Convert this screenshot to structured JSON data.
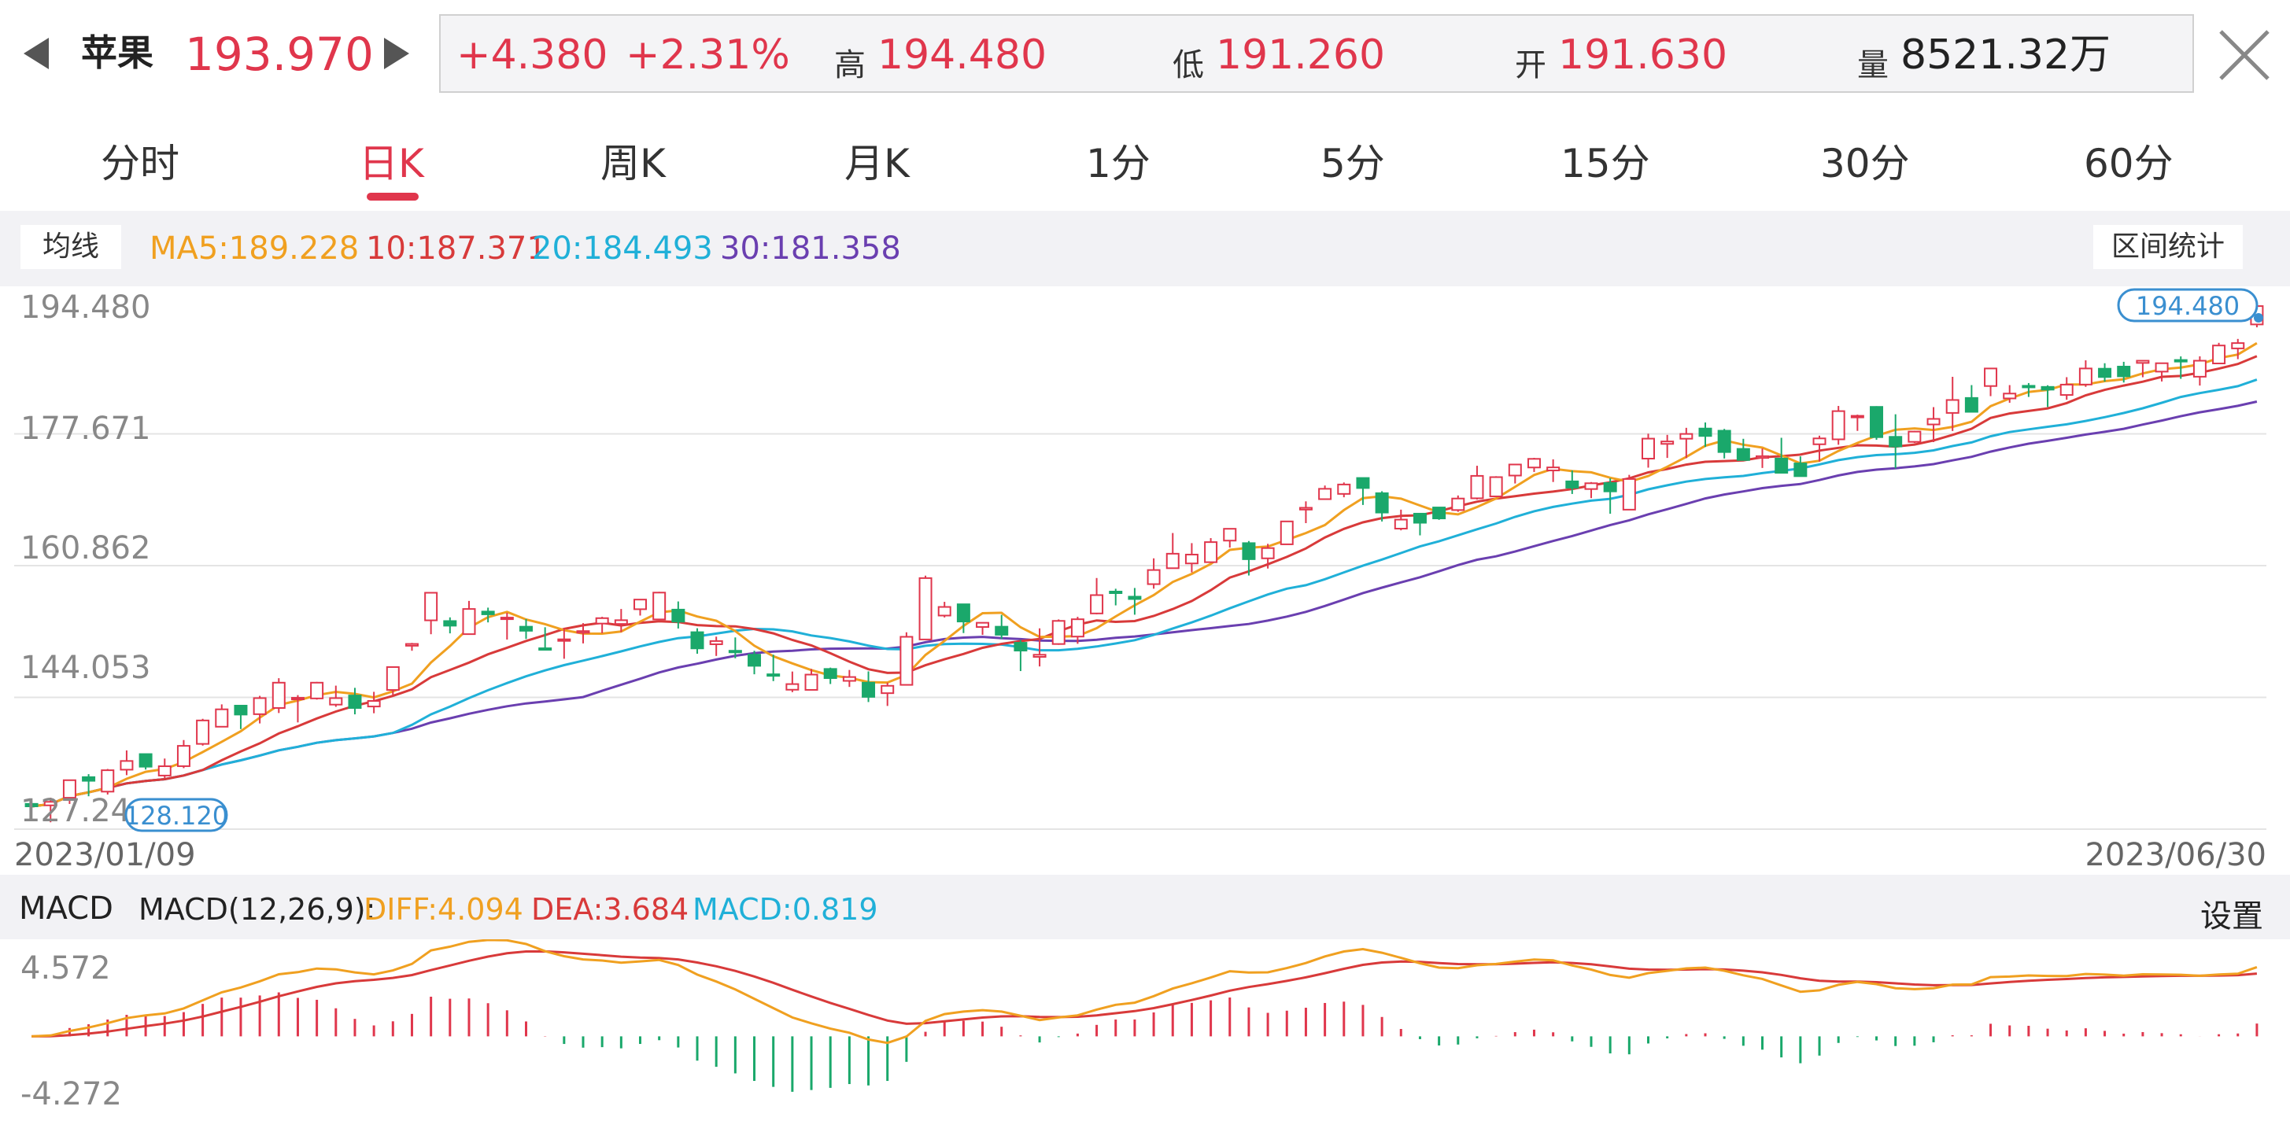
{
  "header": {
    "name": "苹果",
    "price": "193.970",
    "change": "+4.380",
    "change_pct": "+2.31%",
    "high_label": "高",
    "high": "194.480",
    "low_label": "低",
    "low": "191.260",
    "open_label": "开",
    "open": "191.630",
    "volume_label": "量",
    "volume": "8521.32万",
    "accent_red": "#e0364c"
  },
  "tabs": [
    {
      "label": "分时"
    },
    {
      "label": "日K"
    },
    {
      "label": "周K"
    },
    {
      "label": "月K"
    },
    {
      "label": "1分"
    },
    {
      "label": "5分"
    },
    {
      "label": "15分"
    },
    {
      "label": "30分"
    },
    {
      "label": "60分"
    }
  ],
  "active_tab": "日K",
  "ma_bar": {
    "button": "均线",
    "ma5": "MA5:189.228",
    "ma10": "10:187.371",
    "ma20": "20:184.493",
    "ma30": "30:181.358",
    "stats_button": "区间统计",
    "colors": {
      "ma5": "#f0a020",
      "ma10": "#d83a3a",
      "ma20": "#20b0d8",
      "ma30": "#6a3fb0"
    }
  },
  "main_chart": {
    "y_ticks": [
      "194.480",
      "177.671",
      "160.862",
      "144.053",
      "127.244"
    ],
    "ylim": [
      127.244,
      194.48
    ],
    "max_tag": "194.480",
    "min_tag": "128.120",
    "date_start": "2023/01/09",
    "date_end": "2023/06/30"
  },
  "macd_bar": {
    "title": "MACD",
    "params": "MACD(12,26,9):",
    "diff": "DIFF:4.094",
    "dea": "DEA:3.684",
    "macd": "MACD:0.819",
    "settings": "设置"
  },
  "macd_chart": {
    "y_top": "4.572",
    "y_bottom": "-4.272",
    "ylim": [
      -4.272,
      4.572
    ]
  },
  "chart_data": {
    "type": "candlestick",
    "x_range": [
      "2023/01/09",
      "2023/06/30"
    ],
    "candles": [
      [
        130.47,
        130.15,
        130.9,
        129.89
      ],
      [
        130.28,
        130.73,
        131.26,
        128.12
      ],
      [
        131.25,
        133.49,
        133.51,
        130.46
      ],
      [
        133.88,
        133.41,
        134.26,
        131.44
      ],
      [
        132.03,
        134.76,
        134.92,
        131.66
      ],
      [
        134.83,
        135.94,
        137.29,
        134.13
      ],
      [
        136.82,
        135.21,
        136.82,
        134.85
      ],
      [
        134.08,
        135.27,
        136.25,
        133.77
      ],
      [
        135.28,
        137.87,
        138.61,
        135.03
      ],
      [
        138.12,
        141.11,
        141.32,
        137.9
      ],
      [
        140.31,
        142.53,
        143.16,
        140.3
      ],
      [
        143.0,
        141.86,
        142.66,
        140.01
      ],
      [
        141.91,
        143.96,
        144.25,
        140.73
      ],
      [
        142.7,
        145.93,
        146.5,
        142.06
      ],
      [
        143.97,
        144.0,
        144.34,
        140.86
      ],
      [
        143.92,
        145.93,
        146.03,
        143.77
      ],
      [
        143.13,
        143.96,
        145.55,
        142.85
      ],
      [
        144.29,
        142.7,
        145.27,
        141.89
      ],
      [
        142.89,
        143.6,
        144.76,
        142.03
      ],
      [
        145.0,
        147.92,
        147.92,
        144.37
      ],
      [
        150.64,
        150.87,
        151.0,
        150.0
      ],
      [
        153.88,
        157.4,
        157.42,
        152.11
      ],
      [
        153.79,
        153.2,
        154.26,
        152.22
      ],
      [
        152.12,
        155.33,
        156.36,
        152.05
      ],
      [
        155.0,
        154.65,
        155.5,
        153.62
      ],
      [
        154.21,
        154.23,
        154.85,
        151.43
      ],
      [
        153.07,
        152.55,
        154.05,
        151.51
      ],
      [
        150.32,
        150.23,
        153.0,
        150.2
      ],
      [
        151.38,
        151.46,
        152.9,
        148.98
      ],
      [
        152.3,
        152.51,
        153.52,
        150.94
      ],
      [
        153.47,
        154.16,
        154.33,
        152.24
      ],
      [
        153.42,
        153.9,
        155.33,
        152.38
      ],
      [
        155.3,
        156.53,
        156.43,
        154.49
      ],
      [
        154.0,
        157.42,
        157.52,
        155.76
      ],
      [
        155.25,
        153.71,
        156.29,
        152.84
      ],
      [
        152.37,
        150.3,
        152.87,
        149.62
      ],
      [
        150.83,
        151.24,
        151.8,
        149.34
      ],
      [
        150.0,
        149.91,
        151.7,
        149.04
      ],
      [
        149.5,
        148.08,
        150.0,
        147.0
      ],
      [
        147.0,
        146.96,
        149.5,
        146.13
      ],
      [
        145.03,
        145.75,
        147.35,
        144.72
      ],
      [
        145.01,
        146.96,
        147.68,
        145.0
      ],
      [
        147.68,
        146.51,
        147.85,
        145.76
      ],
      [
        146.16,
        146.65,
        147.55,
        145.39
      ],
      [
        145.93,
        144.12,
        147.37,
        143.46
      ],
      [
        144.59,
        145.53,
        145.94,
        142.96
      ],
      [
        145.65,
        151.78,
        152.36,
        146.01
      ],
      [
        151.44,
        159.27,
        159.58,
        153.0
      ],
      [
        154.49,
        155.59,
        156.24,
        154.25
      ],
      [
        155.93,
        153.73,
        155.91,
        152.26
      ],
      [
        153.03,
        153.57,
        153.19,
        152.03
      ],
      [
        153.07,
        152.04,
        154.58,
        151.51
      ],
      [
        151.02,
        150.02,
        151.36,
        147.41
      ],
      [
        149.22,
        149.49,
        152.86,
        148.0
      ],
      [
        150.86,
        153.81,
        154.0,
        150.76
      ],
      [
        151.81,
        154.02,
        154.33,
        150.89
      ],
      [
        154.76,
        157.1,
        159.28,
        154.65
      ],
      [
        157.55,
        157.49,
        157.91,
        155.79
      ],
      [
        156.9,
        156.6,
        158.01,
        154.6
      ],
      [
        158.5,
        160.3,
        161.79,
        157.92
      ],
      [
        160.53,
        162.38,
        165.02,
        161.14
      ],
      [
        161.14,
        162.27,
        163.73,
        160.0
      ],
      [
        161.3,
        163.86,
        164.37,
        162.27
      ],
      [
        164.05,
        165.56,
        165.53,
        163.16
      ],
      [
        163.73,
        161.68,
        164.0,
        159.6
      ],
      [
        161.79,
        163.1,
        163.64,
        160.49
      ],
      [
        163.58,
        166.5,
        166.51,
        163.59
      ],
      [
        168.01,
        168.24,
        169.06,
        166.28
      ],
      [
        169.34,
        170.66,
        171.08,
        169.26
      ],
      [
        170.01,
        171.21,
        171.47,
        169.58
      ],
      [
        172.04,
        170.76,
        171.77,
        168.6
      ],
      [
        170.1,
        167.63,
        170.35,
        166.49
      ],
      [
        165.58,
        166.73,
        168.0,
        165.36
      ],
      [
        167.49,
        166.33,
        167.12,
        164.72
      ],
      [
        168.28,
        166.88,
        168.13,
        166.7
      ],
      [
        167.95,
        169.42,
        169.81,
        167.72
      ],
      [
        169.45,
        172.31,
        173.6,
        169.29
      ],
      [
        169.69,
        172.15,
        172.27,
        170.43
      ],
      [
        172.35,
        173.76,
        173.8,
        171.34
      ],
      [
        173.38,
        174.48,
        174.61,
        172.81
      ],
      [
        173.0,
        173.39,
        174.42,
        171.53
      ],
      [
        171.61,
        170.8,
        173.0,
        170.0
      ],
      [
        170.63,
        171.37,
        171.52,
        169.47
      ],
      [
        171.4,
        170.33,
        172.0,
        167.48
      ],
      [
        168.0,
        171.91,
        172.44,
        170.0
      ],
      [
        174.51,
        177.06,
        177.69,
        173.36
      ],
      [
        176.39,
        176.7,
        177.54,
        174.6
      ],
      [
        177.05,
        177.66,
        178.44,
        174.57
      ],
      [
        178.35,
        177.4,
        179.12,
        176.0
      ],
      [
        178.07,
        175.35,
        178.3,
        174.53
      ],
      [
        175.75,
        174.33,
        177.04,
        175.34
      ],
      [
        174.6,
        174.82,
        175.8,
        173.32
      ],
      [
        174.52,
        172.7,
        177.17,
        174.59
      ],
      [
        173.9,
        172.27,
        174.8,
        172.84
      ],
      [
        176.34,
        177.09,
        177.44,
        174.14
      ],
      [
        176.97,
        180.57,
        181.23,
        176.28
      ],
      [
        179.83,
        179.97,
        180.12,
        178.05
      ],
      [
        181.11,
        177.25,
        181.2,
        176.91
      ],
      [
        177.29,
        176.06,
        180.17,
        173.27
      ],
      [
        176.65,
        177.96,
        178.05,
        176.5
      ],
      [
        178.87,
        179.58,
        181.08,
        176.62
      ],
      [
        180.34,
        181.99,
        184.95,
        178.04
      ],
      [
        182.25,
        180.48,
        183.89,
        181.13
      ],
      [
        183.77,
        186.01,
        185.42,
        182.48
      ],
      [
        182.19,
        182.81,
        183.89,
        181.64
      ],
      [
        183.8,
        183.79,
        184.15,
        182.38
      ],
      [
        183.66,
        183.31,
        183.87,
        181.09
      ],
      [
        182.63,
        183.95,
        184.9,
        182.02
      ],
      [
        183.96,
        186.01,
        187.05,
        183.67
      ],
      [
        185.98,
        184.92,
        186.68,
        184.33
      ],
      [
        186.25,
        185.01,
        186.86,
        184.22
      ],
      [
        186.72,
        187.0,
        186.48,
        184.89
      ],
      [
        185.61,
        186.68,
        186.27,
        184.35
      ],
      [
        187.09,
        187.04,
        187.55,
        184.69
      ],
      [
        184.96,
        187.0,
        187.56,
        183.83
      ],
      [
        186.65,
        188.94,
        189.28,
        186.58
      ],
      [
        188.57,
        189.25,
        189.78,
        187.2
      ],
      [
        191.63,
        193.97,
        194.48,
        191.26
      ]
    ],
    "ma5_last": 189.228,
    "ma10_last": 187.371,
    "ma20_last": 184.493,
    "ma30_last": 181.358,
    "macd": {
      "diff_last": 4.094,
      "dea_last": 3.684,
      "macd_last": 0.819
    }
  }
}
